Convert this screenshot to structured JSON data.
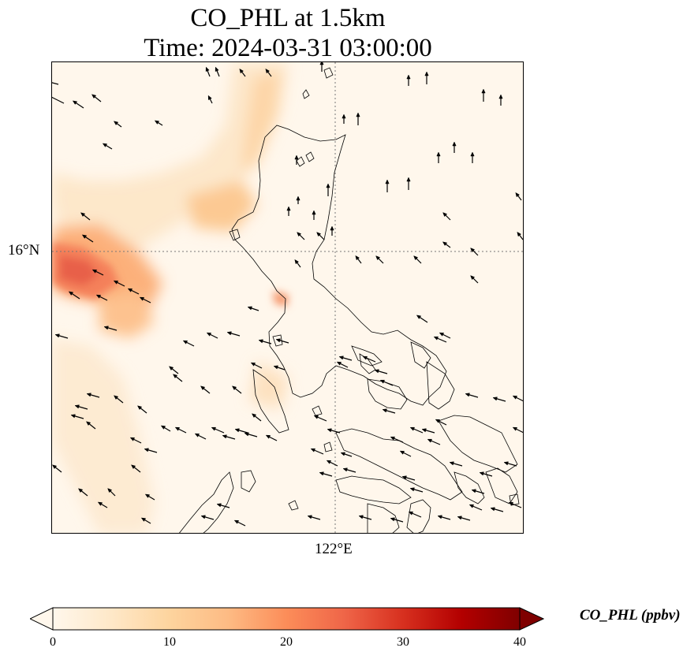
{
  "title": {
    "line1": "CO_PHL at 1.5km",
    "line2": "Time: 2024-03-31 03:00:00"
  },
  "map": {
    "lat_tick_label": "16°N",
    "lon_tick_label": "122°E",
    "gridline_style": "dotted",
    "coastline_color": "#000000",
    "wind_vectors": "black arrows"
  },
  "colorbar": {
    "label": "CO_PHL (ppbv)",
    "colormap": "OrRd",
    "ticks": [
      "0",
      "10",
      "20",
      "30",
      "40"
    ],
    "range": [
      0,
      40
    ],
    "extend": "both",
    "colors": [
      "#fff7ec",
      "#fee8c8",
      "#fdd49e",
      "#fdbb84",
      "#fc8d59",
      "#ef6548",
      "#d7301f",
      "#b30000",
      "#7f0000"
    ]
  }
}
